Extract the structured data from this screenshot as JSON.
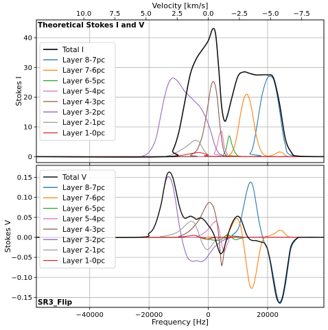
{
  "chart_data": [
    {
      "type": "line",
      "panel": "top",
      "annotation": "Theoretical Stokes I and V",
      "xlabel": "",
      "ylabel": "Stokes I",
      "top_axis_label": "Velocity [km/s]",
      "top_axis_ticks": [
        "10.0",
        "7.5",
        "5.0",
        "2.5",
        "0.0",
        "−2.5",
        "−5.0",
        "−7.5"
      ],
      "top_axis_tick_freq": [
        -42000,
        -31500,
        -21000,
        -10500,
        0,
        10500,
        21000,
        31500
      ],
      "xlim": [
        -58000,
        39000
      ],
      "ylim": [
        -2,
        46
      ],
      "yticks": [
        0,
        10,
        20,
        30,
        40
      ],
      "grid": true,
      "legend": "upper-left",
      "series": [
        {
          "name": "Total I",
          "color": "#111111",
          "width": 1.6,
          "x": [
            -58000,
            -14000,
            -12000,
            -10000,
            -8000,
            -6000,
            -4000,
            -2000,
            0,
            1500,
            2500,
            3500,
            4500,
            5500,
            6500,
            8000,
            10000,
            12000,
            14000,
            16000,
            18000,
            20000,
            22000,
            24000,
            26000,
            28000,
            30000,
            39000
          ],
          "y": [
            0,
            0,
            2,
            8,
            18,
            28,
            33,
            36,
            39,
            43,
            41,
            30,
            17,
            12,
            14,
            20,
            27,
            28.5,
            28,
            27.5,
            27.5,
            27.5,
            26.5,
            18,
            6,
            1.5,
            0.2,
            0
          ]
        },
        {
          "name": "Layer 8-7pc",
          "color": "#1f77b4",
          "width": 1.1,
          "x": [
            -58000,
            12000,
            14000,
            15000,
            16000,
            17000,
            18000,
            19000,
            20000,
            21000,
            22000,
            23000,
            24000,
            25000,
            26000,
            28000,
            39000
          ],
          "y": [
            0,
            0,
            1,
            3,
            8,
            14,
            20,
            24,
            26.5,
            27,
            26,
            22,
            16,
            9,
            4,
            0.5,
            0
          ]
        },
        {
          "name": "Layer 7-6pc",
          "color": "#ff7f0e",
          "width": 1.1,
          "x": [
            -58000,
            6000,
            7000,
            8000,
            9000,
            10000,
            11000,
            12000,
            13000,
            14000,
            15000,
            16000,
            17000,
            18000,
            19000,
            20000,
            21000,
            22000,
            23000,
            24000,
            25000,
            26000,
            28000,
            39000
          ],
          "y": [
            0,
            0,
            0.5,
            1.5,
            4,
            9,
            15,
            19.5,
            21,
            19,
            14,
            8,
            4,
            1.5,
            0.5,
            0.2,
            0.3,
            0.6,
            1.2,
            1.6,
            1.3,
            0.5,
            0,
            0
          ]
        },
        {
          "name": "Layer 6-5pc",
          "color": "#2ca02c",
          "width": 1.1,
          "x": [
            -58000,
            3500,
            5000,
            6000,
            6500,
            7000,
            7500,
            8000,
            9000,
            10000,
            11000,
            39000
          ],
          "y": [
            0,
            0,
            0.5,
            2.5,
            5,
            7,
            6,
            4,
            1.5,
            0.3,
            0,
            0
          ]
        },
        {
          "name": "Layer 5-4pc",
          "color": "#e377c2",
          "width": 1.1,
          "x": [
            -58000,
            1000,
            2000,
            3000,
            3800,
            4500,
            5000,
            5500,
            6500,
            8000,
            39000
          ],
          "y": [
            0,
            0,
            1,
            4,
            7.5,
            8.5,
            6,
            3,
            0.8,
            0,
            0
          ]
        },
        {
          "name": "Layer 4-3pc",
          "color": "#8c564b",
          "width": 1.1,
          "x": [
            -58000,
            -8000,
            -6000,
            -4000,
            -3000,
            -2000,
            -1000,
            0,
            1000,
            2000,
            3000,
            4000,
            5000,
            6000,
            8000,
            39000
          ],
          "y": [
            0,
            0,
            0.5,
            2,
            4,
            7,
            12,
            18,
            24,
            25,
            20,
            10,
            3,
            0.5,
            0,
            0
          ]
        },
        {
          "name": "Layer 3-2pc",
          "color": "#9467bd",
          "width": 1.1,
          "x": [
            -58000,
            -26000,
            -22000,
            -20000,
            -18000,
            -17000,
            -16000,
            -15000,
            -14000,
            -13000,
            -12000,
            -11000,
            -10000,
            -9000,
            -8000,
            -7000,
            -6000,
            -5000,
            -4000,
            -3000,
            -2000,
            -1000,
            0,
            1000,
            2000,
            3000,
            4000,
            6000,
            8000,
            39000
          ],
          "y": [
            0,
            0,
            0.3,
            1.5,
            5,
            9,
            14,
            19,
            23,
            25.5,
            26.5,
            26,
            25,
            23.5,
            22,
            21,
            20,
            19,
            18,
            17,
            15.5,
            13.5,
            11,
            8,
            4.5,
            2,
            0.8,
            0.1,
            0,
            0
          ]
        },
        {
          "name": "Layer 2-1pc",
          "color": "#999999",
          "width": 1.1,
          "x": [
            -58000,
            -18000,
            -14000,
            -12000,
            -10000,
            -8000,
            -6000,
            -5000,
            -4000,
            -3000,
            -2000,
            -1000,
            0,
            2000,
            39000
          ],
          "y": [
            0,
            0,
            0.2,
            0.8,
            1.8,
            3,
            4.5,
            5.3,
            5.5,
            4.8,
            3,
            1.5,
            0.5,
            0,
            0
          ]
        },
        {
          "name": "Layer 1-0pc",
          "color": "#d62728",
          "width": 1.1,
          "x": [
            -58000,
            -14000,
            -12000,
            -10000,
            -8000,
            -6000,
            -4000,
            -3000,
            -2000,
            0,
            2000,
            39000
          ],
          "y": [
            0,
            0,
            0.1,
            0.3,
            0.6,
            1,
            1.3,
            1.4,
            1.2,
            0.6,
            0.1,
            0
          ]
        }
      ]
    },
    {
      "type": "line",
      "panel": "bottom",
      "annotation": "SR3_Flip",
      "xlabel": "Frequency [Hz]",
      "ylabel": "Stokes V",
      "xlim": [
        -58000,
        39000
      ],
      "xticks": [
        -40000,
        -20000,
        0,
        20000
      ],
      "xtick_labels": [
        "−40000",
        "−20000",
        "0",
        "20000"
      ],
      "ylim": [
        -0.175,
        0.18
      ],
      "yticks": [
        -0.15,
        -0.1,
        -0.05,
        0.0,
        0.05,
        0.1,
        0.15
      ],
      "ytick_labels": [
        "−0.15",
        "−0.10",
        "−0.05",
        "0.00",
        "0.05",
        "0.10",
        "0.15"
      ],
      "grid": true,
      "legend": "upper-left",
      "series": [
        {
          "name": "Total V",
          "color": "#111111",
          "width": 1.4,
          "x": [
            -58000,
            -24000,
            -20000,
            -18000,
            -16000,
            -15000,
            -14000,
            -13000,
            -12000,
            -11000,
            -10000,
            -9000,
            -8000,
            -7000,
            -6000,
            -5000,
            -4000,
            -3000,
            -2000,
            -1000,
            0,
            1000,
            2000,
            3000,
            4000,
            5000,
            6000,
            7000,
            8000,
            9000,
            10000,
            11000,
            12000,
            13000,
            14000,
            15000,
            16000,
            17000,
            18000,
            19000,
            20000,
            21000,
            22000,
            23000,
            24000,
            25000,
            26000,
            27000,
            28000,
            30000,
            32000,
            39000
          ],
          "y": [
            0,
            0,
            0.01,
            0.03,
            0.08,
            0.12,
            0.155,
            0.163,
            0.15,
            0.12,
            0.085,
            0.06,
            0.048,
            0.05,
            0.053,
            0.05,
            0.045,
            0.048,
            0.047,
            0.04,
            0.03,
            0.02,
            0.005,
            -0.02,
            -0.04,
            -0.035,
            -0.01,
            0.015,
            0.035,
            0.048,
            0.053,
            0.045,
            0.025,
            0.005,
            -0.005,
            -0.008,
            -0.008,
            -0.01,
            -0.012,
            -0.015,
            -0.03,
            -0.065,
            -0.11,
            -0.15,
            -0.163,
            -0.15,
            -0.11,
            -0.06,
            -0.02,
            -0.002,
            0,
            0
          ]
        },
        {
          "name": "Layer 8-7pc",
          "color": "#1f77b4",
          "width": 1.1,
          "x": [
            -58000,
            6000,
            8000,
            10000,
            11000,
            12000,
            13000,
            14000,
            15000,
            16000,
            17000,
            18000,
            19000,
            20000,
            21000,
            22000,
            23000,
            24000,
            25000,
            26000,
            27000,
            28000,
            30000,
            32000,
            39000
          ],
          "y": [
            0,
            0,
            0.005,
            0.02,
            0.045,
            0.08,
            0.115,
            0.137,
            0.13,
            0.09,
            0.045,
            0.01,
            -0.015,
            -0.03,
            -0.06,
            -0.1,
            -0.14,
            -0.165,
            -0.155,
            -0.12,
            -0.07,
            -0.025,
            -0.003,
            0,
            0
          ]
        },
        {
          "name": "Layer 7-6pc",
          "color": "#ff7f0e",
          "width": 1.1,
          "x": [
            -58000,
            4000,
            6000,
            7000,
            8000,
            9000,
            10000,
            11000,
            12000,
            13000,
            14000,
            15000,
            16000,
            17000,
            18000,
            19000,
            20000,
            21000,
            22000,
            23000,
            24000,
            25000,
            26000,
            27000,
            28000,
            30000,
            39000
          ],
          "y": [
            0,
            0,
            0.005,
            0.015,
            0.03,
            0.045,
            0.045,
            0.025,
            -0.02,
            -0.075,
            -0.12,
            -0.125,
            -0.095,
            -0.05,
            -0.015,
            0,
            0.003,
            0.005,
            0.008,
            0.013,
            0.018,
            0.016,
            0.008,
            0.002,
            0,
            0,
            0
          ]
        },
        {
          "name": "Layer 6-5pc",
          "color": "#2ca02c",
          "width": 1.1,
          "x": [
            -58000,
            -6000,
            -2000,
            1000,
            3000,
            4500,
            5500,
            6500,
            7500,
            8500,
            9500,
            10500,
            12000,
            14000,
            39000
          ],
          "y": [
            0,
            0,
            -0.003,
            -0.006,
            -0.008,
            -0.005,
            0.002,
            0.006,
            0.003,
            -0.004,
            -0.006,
            -0.003,
            -0.001,
            0,
            0
          ]
        },
        {
          "name": "Layer 5-4pc",
          "color": "#e377c2",
          "width": 1.1,
          "x": [
            -58000,
            -6000,
            -4000,
            -2000,
            0,
            1000,
            2000,
            2800,
            3500,
            4000,
            4500,
            5000,
            5500,
            6000,
            7000,
            8000,
            39000
          ],
          "y": [
            0,
            0,
            0.002,
            0.008,
            0.02,
            0.03,
            0.038,
            0.04,
            0.025,
            0.005,
            -0.015,
            -0.03,
            -0.035,
            -0.025,
            -0.008,
            0,
            0
          ]
        },
        {
          "name": "Layer 4-3pc",
          "color": "#8c564b",
          "width": 1.1,
          "x": [
            -58000,
            -12000,
            -10000,
            -8000,
            -6000,
            -4000,
            -3000,
            -2000,
            -1000,
            0,
            1000,
            2000,
            3000,
            3500,
            4000,
            4500,
            5000,
            5500,
            6000,
            7000,
            8000,
            39000
          ],
          "y": [
            0,
            0,
            0.002,
            0.008,
            0.018,
            0.035,
            0.045,
            0.06,
            0.075,
            0.086,
            0.085,
            0.07,
            0.035,
            0.005,
            -0.035,
            -0.07,
            -0.055,
            -0.025,
            -0.008,
            -0.002,
            0,
            0
          ]
        },
        {
          "name": "Layer 3-2pc",
          "color": "#9467bd",
          "width": 1.1,
          "x": [
            -58000,
            -24000,
            -20000,
            -18000,
            -16000,
            -15000,
            -14000,
            -13000,
            -12000,
            -11000,
            -10000,
            -9000,
            -8000,
            -7000,
            -6000,
            -5000,
            -4000,
            -3000,
            -2000,
            -1000,
            0,
            1000,
            2000,
            3000,
            4000,
            5000,
            6000,
            7000,
            8000,
            10000,
            39000
          ],
          "y": [
            0,
            0,
            0.01,
            0.03,
            0.08,
            0.12,
            0.148,
            0.15,
            0.13,
            0.09,
            0.04,
            0,
            -0.03,
            -0.05,
            -0.058,
            -0.06,
            -0.058,
            -0.06,
            -0.06,
            -0.055,
            -0.045,
            -0.035,
            -0.025,
            -0.018,
            -0.012,
            -0.008,
            -0.004,
            -0.002,
            0,
            0,
            0
          ]
        },
        {
          "name": "Layer 2-1pc",
          "color": "#999999",
          "width": 1.1,
          "x": [
            -58000,
            -20000,
            -16000,
            -12000,
            -10000,
            -8000,
            -7000,
            -6000,
            -5000,
            -4000,
            -3000,
            -2000,
            -1000,
            0,
            1000,
            2000,
            3000,
            4000,
            6000,
            39000
          ],
          "y": [
            0,
            0,
            0.002,
            0.008,
            0.015,
            0.028,
            0.035,
            0.04,
            0.038,
            0.025,
            0.005,
            -0.015,
            -0.028,
            -0.03,
            -0.022,
            -0.012,
            -0.005,
            -0.001,
            0,
            0
          ]
        },
        {
          "name": "Layer 1-0pc",
          "color": "#d62728",
          "width": 1.1,
          "x": [
            -58000,
            -14000,
            -10000,
            -8000,
            -6000,
            -5000,
            -4000,
            -3000,
            -2000,
            -1000,
            0,
            1000,
            2000,
            4000,
            39000
          ],
          "y": [
            0,
            0,
            0.001,
            0.002,
            0.004,
            0.005,
            0.004,
            0.001,
            -0.002,
            -0.004,
            -0.004,
            -0.002,
            -0.001,
            0,
            0
          ]
        }
      ]
    }
  ]
}
